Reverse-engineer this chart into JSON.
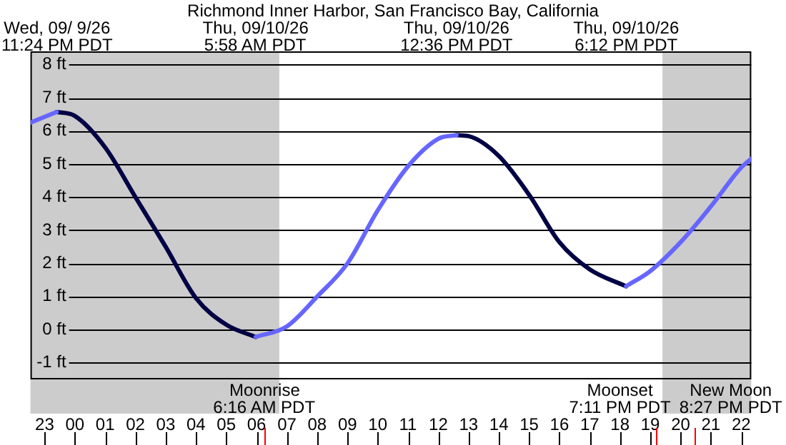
{
  "chart_data": {
    "type": "line",
    "title": "Richmond Inner Harbor, San Francisco Bay, California",
    "series": [
      {
        "color": "#6666ff",
        "x": [
          "--09-09T22:32",
          "--09-09T23:24",
          "--09-10T03:00",
          "--09-10T05:58",
          "--09-10T07:00",
          "--09-10T08:00",
          "--09-10T09:00",
          "--09-10T10:00",
          "--09-10T11:00",
          "--09-10T12:00",
          "--09-10T12:36",
          "--09-10T15:00",
          "--09-10T18:12",
          "--09-10T19:00",
          "--09-10T20:00",
          "--09-10T21:00",
          "--09-10T22:00",
          "--09-10T22:20"
        ],
        "values": [
          6.25,
          6.57,
          null,
          -0.22,
          0.1,
          1.0,
          2.0,
          3.6,
          4.93,
          5.76,
          5.87,
          null,
          1.31,
          1.77,
          2.64,
          3.72,
          4.89,
          5.16
        ]
      },
      {
        "color": "#000044",
        "x": [
          "--09-09T23:24",
          "--09-10T00:00",
          "--09-10T01:00",
          "--09-10T02:00",
          "--09-10T03:00",
          "--09-10T04:00",
          "--09-10T05:00",
          "--09-10T05:58",
          "--09-10T09:00",
          "--09-10T12:36",
          "--09-10T13:00",
          "--09-10T14:00",
          "--09-10T15:00",
          "--09-10T16:00",
          "--09-10T17:00",
          "--09-10T18:12"
        ],
        "values": [
          6.57,
          6.45,
          5.5,
          4.0,
          2.5,
          0.95,
          0.15,
          -0.22,
          null,
          5.87,
          5.84,
          5.24,
          4.07,
          2.64,
          1.82,
          1.31
        ]
      }
    ],
    "xlim": [
      "--09-09T22:32",
      "--09-10T22:20"
    ],
    "xticks": [
      {
        "value": "--09-09T23:00",
        "label": "23"
      },
      {
        "value": "--09-10T00:00",
        "label": "00"
      },
      {
        "value": "--09-10T01:00",
        "label": "01"
      },
      {
        "value": "--09-10T02:00",
        "label": "02"
      },
      {
        "value": "--09-10T03:00",
        "label": "03"
      },
      {
        "value": "--09-10T04:00",
        "label": "04"
      },
      {
        "value": "--09-10T05:00",
        "label": "05"
      },
      {
        "value": "--09-10T06:00",
        "label": "06"
      },
      {
        "value": "--09-10T07:00",
        "label": "07"
      },
      {
        "value": "--09-10T08:00",
        "label": "08"
      },
      {
        "value": "--09-10T09:00",
        "label": "09"
      },
      {
        "value": "--09-10T10:00",
        "label": "10"
      },
      {
        "value": "--09-10T11:00",
        "label": "11"
      },
      {
        "value": "--09-10T12:00",
        "label": "12"
      },
      {
        "value": "--09-10T13:00",
        "label": "13"
      },
      {
        "value": "--09-10T14:00",
        "label": "14"
      },
      {
        "value": "--09-10T15:00",
        "label": "15"
      },
      {
        "value": "--09-10T16:00",
        "label": "16"
      },
      {
        "value": "--09-10T17:00",
        "label": "17"
      },
      {
        "value": "--09-10T18:00",
        "label": "18"
      },
      {
        "value": "--09-10T19:00",
        "label": "19"
      },
      {
        "value": "--09-10T20:00",
        "label": "20"
      },
      {
        "value": "--09-10T21:00",
        "label": "21"
      },
      {
        "value": "--09-10T22:00",
        "label": "22"
      }
    ],
    "ylim": [
      -1.5,
      8.4
    ],
    "yticks": [
      {
        "value": -1,
        "label": "-1 ft"
      },
      {
        "value": 0,
        "label": "0 ft"
      },
      {
        "value": 1,
        "label": "1 ft"
      },
      {
        "value": 2,
        "label": "2 ft"
      },
      {
        "value": 3,
        "label": "3 ft"
      },
      {
        "value": 4,
        "label": "4 ft"
      },
      {
        "value": 5,
        "label": "5 ft"
      },
      {
        "value": 6,
        "label": "6 ft"
      },
      {
        "value": 7,
        "label": "7 ft"
      },
      {
        "value": 8,
        "label": "8 ft"
      }
    ],
    "grid": "y",
    "marker": "none",
    "line_style": "solid",
    "bands": [
      {
        "axis": "x",
        "from": "--09-09T22:32",
        "to": "--09-10T06:45",
        "color": "#cccccc"
      },
      {
        "axis": "x",
        "from": "--09-10T19:24",
        "to": "--09-10T22:20",
        "color": "#cccccc"
      }
    ],
    "ref_lines": [
      {
        "axis": "x",
        "value": "--09-10T06:16",
        "label": "Moonrise\n6:16 AM PDT",
        "color": "#ff0000"
      },
      {
        "axis": "x",
        "value": "--09-10T19:11",
        "label": "Moonset\n7:11 PM PDT",
        "color": "#ff0000"
      },
      {
        "axis": "x",
        "value": "--09-10T20:27",
        "label": "New Moon\n8:27 PM PDT",
        "color": "#ff0000"
      }
    ],
    "annotations": [
      "Wed, 09/ 9/26\n11:24 PM PDT",
      "Thu, 09/10/26\n5:58 AM PDT",
      "Thu, 09/10/26\n12:36 PM PDT",
      "Thu, 09/10/26\n6:12 PM PDT"
    ]
  }
}
